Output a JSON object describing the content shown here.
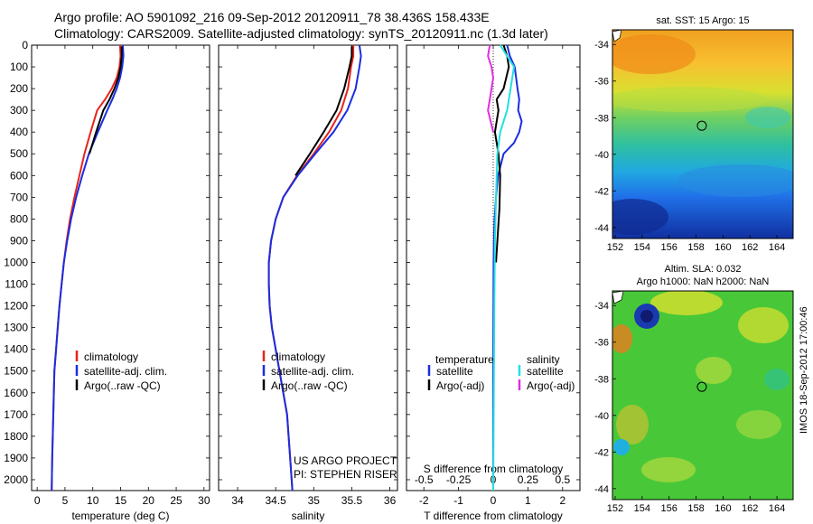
{
  "header": {
    "line1": "Argo profile: AO 5901092_216 09-Sep-2012 20120911_78 38.436S 158.433E",
    "line2": "Climatology: CARS2009. Satellite-adjusted climatology: synTS_20120911.nc (1.3d later)"
  },
  "stamp": "IMOS 18-Sep-2012 17:00:46",
  "colors": {
    "climatology": "#e8231c",
    "satellite": "#1a2ee0",
    "argo": "#000000",
    "salinity_satellite": "#22e0e0",
    "salinity_argo": "#e02ee0"
  },
  "chart_data": [
    {
      "id": "temperature",
      "type": "line",
      "xlabel": "temperature (deg C)",
      "ylim": [
        2050,
        0
      ],
      "xlim": [
        -1,
        31
      ],
      "xticks": [
        0,
        5,
        10,
        15,
        20,
        25,
        30
      ],
      "yticks": [
        0,
        100,
        200,
        300,
        400,
        500,
        600,
        700,
        800,
        900,
        1000,
        1100,
        1200,
        1300,
        1400,
        1500,
        1600,
        1700,
        1800,
        1900,
        2000
      ],
      "legend": [
        "climatology",
        "satellite-adj. clim.",
        "Argo(..raw -QC)"
      ],
      "series": [
        {
          "name": "climatology",
          "color": "#e8231c",
          "x": [
            14.9,
            15.0,
            14.8,
            14.3,
            13.4,
            12.2,
            10.8,
            9.6,
            8.5,
            7.6,
            6.7,
            5.9,
            5.3,
            4.8,
            4.4,
            4.0,
            3.7,
            3.4,
            3.1,
            2.9,
            2.7,
            2.6
          ],
          "y": [
            0,
            50,
            100,
            150,
            200,
            250,
            300,
            400,
            500,
            600,
            700,
            800,
            900,
            1000,
            1100,
            1200,
            1300,
            1400,
            1500,
            1700,
            1900,
            2050
          ]
        },
        {
          "name": "satellite-adj. clim.",
          "color": "#1a2ee0",
          "x": [
            15.4,
            15.5,
            15.3,
            14.9,
            14.3,
            13.5,
            12.6,
            10.9,
            9.3,
            8.1,
            7.0,
            6.1,
            5.4,
            4.8,
            4.4,
            4.0,
            3.7,
            3.4,
            3.1,
            2.9,
            2.7,
            2.6
          ],
          "y": [
            0,
            50,
            100,
            150,
            200,
            250,
            300,
            400,
            500,
            600,
            700,
            800,
            900,
            1000,
            1100,
            1200,
            1300,
            1400,
            1500,
            1700,
            1900,
            2050
          ]
        },
        {
          "name": "Argo(..raw -QC)",
          "color": "#000000",
          "x": [
            15.2,
            15.2,
            15.0,
            14.6,
            13.9,
            13.0,
            11.9,
            10.6,
            9.4
          ],
          "y": [
            5,
            50,
            100,
            150,
            200,
            250,
            300,
            400,
            500
          ]
        }
      ]
    },
    {
      "id": "salinity",
      "type": "line",
      "xlabel": "salinity",
      "ylim": [
        2050,
        0
      ],
      "xlim": [
        33.75,
        36.1
      ],
      "xticks": [
        34,
        34.5,
        35,
        35.5,
        36
      ],
      "legend": [
        "climatology",
        "satellite-adj. clim.",
        "Argo(..raw -QC)"
      ],
      "annotation": [
        "US ARGO PROJECT",
        "PI: STEPHEN RISER"
      ],
      "series": [
        {
          "name": "climatology",
          "color": "#e8231c",
          "x": [
            35.52,
            35.52,
            35.49,
            35.45,
            35.36,
            35.2,
            35.0,
            34.78,
            34.6,
            34.5,
            34.44,
            34.41,
            34.41,
            34.42,
            34.45,
            34.5,
            34.55,
            34.6,
            34.65,
            34.69,
            34.72
          ],
          "y": [
            0,
            50,
            100,
            200,
            300,
            400,
            500,
            600,
            700,
            800,
            900,
            1000,
            1100,
            1200,
            1300,
            1400,
            1500,
            1600,
            1700,
            1900,
            2050
          ]
        },
        {
          "name": "satellite-adj. clim.",
          "color": "#1a2ee0",
          "x": [
            35.6,
            35.62,
            35.6,
            35.55,
            35.44,
            35.26,
            35.02,
            34.79,
            34.6,
            34.5,
            34.44,
            34.41,
            34.41,
            34.42,
            34.45,
            34.5,
            34.55,
            34.6,
            34.65,
            34.69,
            34.72
          ],
          "y": [
            0,
            50,
            100,
            200,
            300,
            400,
            500,
            600,
            700,
            800,
            900,
            1000,
            1100,
            1200,
            1300,
            1400,
            1500,
            1600,
            1700,
            1900,
            2050
          ]
        },
        {
          "name": "Argo(..raw -QC)",
          "color": "#000000",
          "x": [
            35.5,
            35.5,
            35.47,
            35.4,
            35.3,
            35.13,
            34.95,
            34.76
          ],
          "y": [
            5,
            50,
            100,
            200,
            300,
            400,
            500,
            600
          ]
        }
      ]
    },
    {
      "id": "differences",
      "type": "line",
      "xlabel": "T difference from climatology",
      "xlabel2": "S difference from climatology",
      "ylim": [
        2050,
        0
      ],
      "xlim": [
        -2.5,
        2.5
      ],
      "xticks": [
        -2,
        -1,
        0,
        1,
        2
      ],
      "xticks_top": [
        "-0.5",
        "-0.25",
        "0",
        "0.25",
        "0.5"
      ],
      "legend_titles": [
        "temperature",
        "salinity"
      ],
      "legend": [
        "satellite",
        "Argo(-adj)",
        "satellite",
        "Argo(-adj)"
      ],
      "series": [
        {
          "name": "satellite",
          "color": "#1a2ee0",
          "x": [
            0.4,
            0.48,
            0.62,
            0.7,
            0.75,
            0.72,
            0.82,
            0.75,
            0.6,
            0.3,
            0.14,
            0.08,
            0.04,
            0.02,
            0.01,
            0,
            0
          ],
          "y": [
            0,
            50,
            100,
            200,
            250,
            300,
            350,
            400,
            450,
            500,
            600,
            700,
            800,
            900,
            1000,
            1500,
            2050
          ]
        },
        {
          "name": "Argo(-adj)",
          "color": "#000000",
          "x": [
            0.3,
            0.4,
            0.45,
            0.3,
            0.1,
            0.15,
            0.05,
            0.15,
            0.2,
            0.18,
            0.12,
            0.08
          ],
          "y": [
            0,
            50,
            100,
            200,
            250,
            300,
            400,
            500,
            600,
            750,
            900,
            1000
          ]
        },
        {
          "name": "satellite",
          "color": "#22e0e0",
          "x": [
            0.2,
            0.4,
            0.6,
            0.5,
            0.4,
            0.2,
            0.12,
            0.08,
            0.05,
            0.03,
            0
          ],
          "y": [
            0,
            50,
            100,
            200,
            300,
            400,
            500,
            700,
            900,
            1200,
            2050
          ]
        },
        {
          "name": "Argo(-adj)",
          "color": "#e02ee0",
          "x": [
            -0.1,
            -0.15,
            -0.05,
            0,
            -0.05,
            -0.1,
            -0.15,
            0
          ],
          "y": [
            0,
            50,
            100,
            150,
            200,
            250,
            300,
            400
          ]
        }
      ]
    },
    {
      "id": "sst_map",
      "type": "heatmap",
      "title": "sat. SST: 15  Argo: 15",
      "xticks": [
        152,
        154,
        156,
        158,
        160,
        162,
        164
      ],
      "yticks": [
        -34,
        -36,
        -38,
        -40,
        -42,
        -44
      ],
      "marker": [
        158.43,
        -38.44
      ]
    },
    {
      "id": "sla_map",
      "type": "heatmap",
      "title": "Altim. SLA: 0.032",
      "subtitle": "Argo h1000: NaN h2000: NaN",
      "xticks": [
        152,
        154,
        156,
        158,
        160,
        162,
        164
      ],
      "yticks": [
        -34,
        -36,
        -38,
        -40,
        -42,
        -44
      ],
      "marker": [
        158.43,
        -38.44
      ]
    }
  ]
}
